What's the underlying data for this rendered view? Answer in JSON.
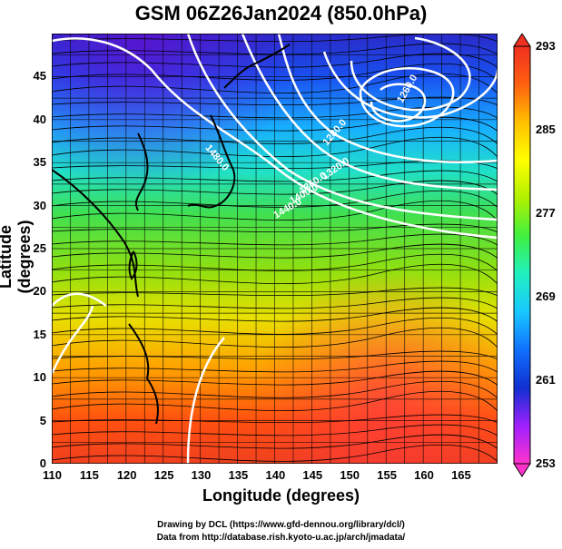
{
  "title": "GSM 06Z26Jan2024 (850.0hPa)",
  "x_axis": {
    "label": "Longitude (degrees)",
    "min": 110,
    "max": 170,
    "ticks": [
      "110",
      "115",
      "120",
      "125",
      "130",
      "135",
      "140",
      "145",
      "150",
      "155",
      "160",
      "165"
    ]
  },
  "y_axis": {
    "label": "Latitude  (degrees)",
    "min": 0,
    "max": 50,
    "ticks": [
      "0",
      "5",
      "10",
      "15",
      "20",
      "25",
      "30",
      "35",
      "40",
      "45"
    ]
  },
  "colorbar": {
    "min": 253,
    "max": 293,
    "labels": [
      "253",
      "261",
      "269",
      "277",
      "285",
      "293"
    ],
    "colors": [
      "#ff33cc",
      "#a020ff",
      "#1030d0",
      "#1070ff",
      "#18c8ff",
      "#20f0c0",
      "#40f040",
      "#b0f000",
      "#ffff00",
      "#ffc000",
      "#ff6010",
      "#f03020"
    ]
  },
  "contours": [
    {
      "label": "1260.0"
    },
    {
      "label": "1280.0"
    },
    {
      "label": "1320.0"
    },
    {
      "label": "1360.0"
    },
    {
      "label": "1400.0"
    },
    {
      "label": "1440.0"
    },
    {
      "label": "1480.0"
    }
  ],
  "credits": [
    "Drawing by DCL (https://www.gfd-dennou.org/library/dcl/)",
    "Data from http://database.rish.kyoto-u.ac.jp/arch/jmadata/"
  ]
}
